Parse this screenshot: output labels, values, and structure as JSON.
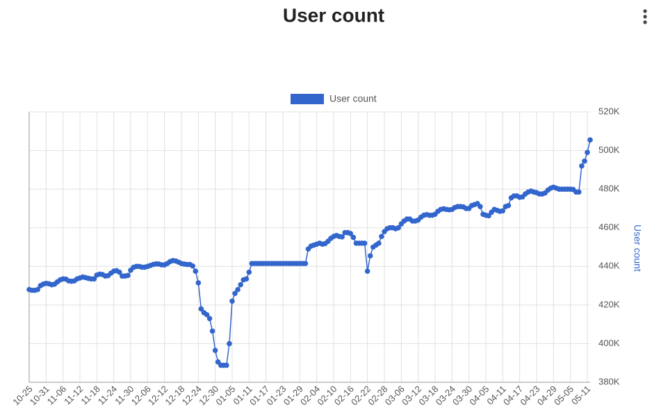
{
  "chart_data": {
    "type": "line",
    "title": "User count",
    "y_label": "User count",
    "y_axis_side": "right",
    "legend": "top",
    "grid": true,
    "categories": [
      "10-25",
      null,
      null,
      null,
      null,
      null,
      "10-31",
      null,
      null,
      null,
      null,
      null,
      "11-06",
      null,
      null,
      null,
      null,
      null,
      "11-12",
      null,
      null,
      null,
      null,
      null,
      "11-18",
      null,
      null,
      null,
      null,
      null,
      "11-24",
      null,
      null,
      null,
      null,
      null,
      "11-30",
      null,
      null,
      null,
      null,
      null,
      "12-06",
      null,
      null,
      null,
      null,
      null,
      "12-12",
      null,
      null,
      null,
      null,
      null,
      "12-18",
      null,
      null,
      null,
      null,
      null,
      "12-24",
      null,
      null,
      null,
      null,
      null,
      "12-30",
      null,
      null,
      null,
      null,
      null,
      "01-05",
      null,
      null,
      null,
      null,
      null,
      "01-11",
      null,
      null,
      null,
      null,
      null,
      "01-17",
      null,
      null,
      null,
      null,
      null,
      "01-23",
      null,
      null,
      null,
      null,
      null,
      "01-29",
      null,
      null,
      null,
      null,
      null,
      "02-04",
      null,
      null,
      null,
      null,
      null,
      "02-10",
      null,
      null,
      null,
      null,
      null,
      "02-16",
      null,
      null,
      null,
      null,
      null,
      "02-22",
      null,
      null,
      null,
      null,
      null,
      "02-28",
      null,
      null,
      null,
      null,
      null,
      "03-06",
      null,
      null,
      null,
      null,
      null,
      "03-12",
      null,
      null,
      null,
      null,
      null,
      "03-18",
      null,
      null,
      null,
      null,
      null,
      "03-24",
      null,
      null,
      null,
      null,
      null,
      "03-30",
      null,
      null,
      null,
      null,
      null,
      "04-05",
      null,
      null,
      null,
      null,
      null,
      "04-11",
      null,
      null,
      null,
      null,
      null,
      "04-17",
      null,
      null,
      null,
      null,
      null,
      "04-23",
      null,
      null,
      null,
      null,
      null,
      "04-29",
      null,
      null,
      null,
      null,
      null,
      "05-05",
      null,
      null,
      null,
      null,
      null,
      "05-11",
      null
    ],
    "series": [
      {
        "name": "User count",
        "color": "#3366cc",
        "values": [
          428000,
          427600,
          427600,
          428000,
          430000,
          430800,
          431200,
          431000,
          430500,
          430800,
          432000,
          433000,
          433500,
          433400,
          432500,
          432300,
          432500,
          433500,
          434000,
          434500,
          434200,
          433800,
          433500,
          433500,
          435500,
          436000,
          435800,
          435000,
          435200,
          436500,
          437500,
          437800,
          437000,
          435000,
          435000,
          435300,
          438000,
          439500,
          440000,
          440000,
          439600,
          439600,
          440000,
          440500,
          441000,
          441300,
          441200,
          440800,
          440800,
          441500,
          442500,
          443000,
          442800,
          442200,
          441500,
          441200,
          441000,
          441000,
          440200,
          437500,
          431500,
          418000,
          416000,
          415000,
          413000,
          406500,
          396500,
          390500,
          388800,
          388800,
          388800,
          400000,
          422000,
          426000,
          428000,
          430500,
          433000,
          433500,
          437000,
          441500,
          441500,
          441500,
          441500,
          441500,
          441500,
          441500,
          441500,
          441500,
          441500,
          441500,
          441500,
          441500,
          441500,
          441500,
          441500,
          441500,
          441500,
          441500,
          441500,
          449000,
          450500,
          451000,
          451500,
          452000,
          451500,
          451800,
          453000,
          454500,
          455500,
          456000,
          455500,
          455300,
          457500,
          457500,
          457000,
          455000,
          452000,
          452000,
          452000,
          452000,
          437500,
          445500,
          450000,
          451000,
          452000,
          455500,
          458000,
          459500,
          460000,
          460000,
          459500,
          460000,
          462000,
          463500,
          464500,
          464500,
          463500,
          463500,
          464000,
          465500,
          466500,
          466800,
          466500,
          466500,
          467000,
          468500,
          469500,
          469800,
          469500,
          469300,
          469500,
          470500,
          471000,
          471000,
          470800,
          470000,
          470000,
          471500,
          472000,
          472500,
          471000,
          467000,
          466500,
          466200,
          468000,
          469500,
          469000,
          468500,
          468800,
          471000,
          471500,
          475500,
          476500,
          476500,
          475800,
          476000,
          477500,
          478500,
          479000,
          478500,
          478200,
          477500,
          477500,
          478000,
          479500,
          480500,
          481000,
          480500,
          480000,
          480000,
          480000,
          480000,
          480000,
          479800,
          478500,
          478500,
          492000,
          494500,
          499000,
          505500
        ]
      }
    ],
    "ylim": [
      380000,
      520000
    ],
    "yticks": [
      {
        "value": 380000,
        "label": "380K"
      },
      {
        "value": 400000,
        "label": "400K"
      },
      {
        "value": 420000,
        "label": "420K"
      },
      {
        "value": 440000,
        "label": "440K"
      },
      {
        "value": 460000,
        "label": "460K"
      },
      {
        "value": 480000,
        "label": "480K"
      },
      {
        "value": 500000,
        "label": "500K"
      },
      {
        "value": 520000,
        "label": "520K"
      }
    ]
  }
}
